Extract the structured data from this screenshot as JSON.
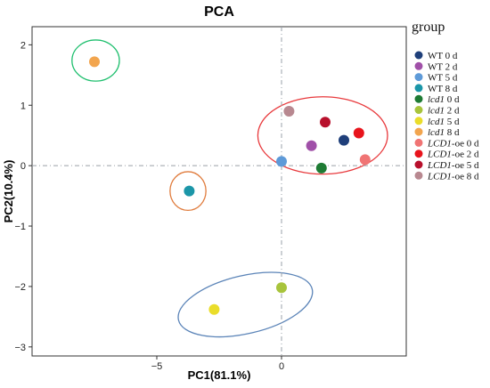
{
  "chart_data": {
    "type": "scatter",
    "title": "PCA",
    "xlabel": "PC1(81.1%)",
    "ylabel": "PC2(10.4%)",
    "xlim": [
      -10,
      5
    ],
    "ylim": [
      -3.15,
      2.3
    ],
    "xticks": [
      -5,
      0
    ],
    "xtick_labels": [
      "−5",
      "0"
    ],
    "yticks": [
      2,
      1,
      0,
      -1,
      -2,
      -3
    ],
    "ytick_labels": [
      "2",
      "1",
      "0",
      "−1",
      "−2",
      "−3"
    ],
    "zero_lines": true,
    "grid": false,
    "legend": {
      "title": "group",
      "placement": "right",
      "entries": [
        {
          "name": "WT 0 d",
          "italic": "",
          "rest": "WT 0 d",
          "color": "#1f3f7a"
        },
        {
          "name": "WT 2 d",
          "italic": "",
          "rest": "WT 2 d",
          "color": "#a050a8"
        },
        {
          "name": "WT 5 d",
          "italic": "",
          "rest": "WT 5 d",
          "color": "#5e9ad8"
        },
        {
          "name": "WT 8 d",
          "italic": "",
          "rest": "WT 8 d",
          "color": "#1b96a8"
        },
        {
          "name": "lcd1 0 d",
          "italic": "lcd1",
          "rest": " 0 d",
          "color": "#1e7b34"
        },
        {
          "name": "lcd1 2 d",
          "italic": "lcd1",
          "rest": " 2 d",
          "color": "#a8c43c"
        },
        {
          "name": "lcd1 5 d",
          "italic": "lcd1",
          "rest": " 5 d",
          "color": "#eadd2a"
        },
        {
          "name": "lcd1 8 d",
          "italic": "lcd1",
          "rest": " 8 d",
          "color": "#f2a54e"
        },
        {
          "name": "LCD1-oe 0 d",
          "italic": "LCD1",
          "rest": "-oe 0 d",
          "color": "#f07474"
        },
        {
          "name": "LCD1-oe 2 d",
          "italic": "LCD1",
          "rest": "-oe 2 d",
          "color": "#e8141c"
        },
        {
          "name": "LCD1-oe 5 d",
          "italic": "LCD1",
          "rest": "-oe 5 d",
          "color": "#b8102c"
        },
        {
          "name": "LCD1-oe 8 d",
          "italic": "LCD1",
          "rest": "-oe 8 d",
          "color": "#b88890"
        }
      ]
    },
    "points": [
      {
        "group": "WT 0 d",
        "x": 2.5,
        "y": 0.42
      },
      {
        "group": "WT 2 d",
        "x": 1.2,
        "y": 0.33
      },
      {
        "group": "WT 5 d",
        "x": 0.0,
        "y": 0.07
      },
      {
        "group": "WT 8 d",
        "x": -3.7,
        "y": -0.42
      },
      {
        "group": "lcd1 0 d",
        "x": 1.6,
        "y": -0.04
      },
      {
        "group": "lcd1 2 d",
        "x": 0.0,
        "y": -2.02
      },
      {
        "group": "lcd1 5 d",
        "x": -2.7,
        "y": -2.38
      },
      {
        "group": "lcd1 8 d",
        "x": -7.5,
        "y": 1.72
      },
      {
        "group": "LCD1-oe 0 d",
        "x": 3.35,
        "y": 0.1
      },
      {
        "group": "LCD1-oe 2 d",
        "x": 3.1,
        "y": 0.54
      },
      {
        "group": "LCD1-oe 5 d",
        "x": 1.75,
        "y": 0.72
      },
      {
        "group": "LCD1-oe 8 d",
        "x": 0.3,
        "y": 0.9
      }
    ],
    "ellipses": [
      {
        "cx": -7.45,
        "cy": 1.74,
        "rx": 0.95,
        "ry": 0.34,
        "angle": 0,
        "color": "#1fbf6e"
      },
      {
        "cx": -3.75,
        "cy": -0.42,
        "rx": 0.72,
        "ry": 0.32,
        "angle": 0,
        "color": "#e07b3c"
      },
      {
        "cx": 1.65,
        "cy": 0.5,
        "rx": 2.6,
        "ry": 0.64,
        "angle": 0,
        "color": "#e8393c"
      },
      {
        "cx": -1.45,
        "cy": -2.3,
        "rx": 2.75,
        "ry": 0.48,
        "angle": 13,
        "color": "#5b84b8"
      }
    ]
  }
}
